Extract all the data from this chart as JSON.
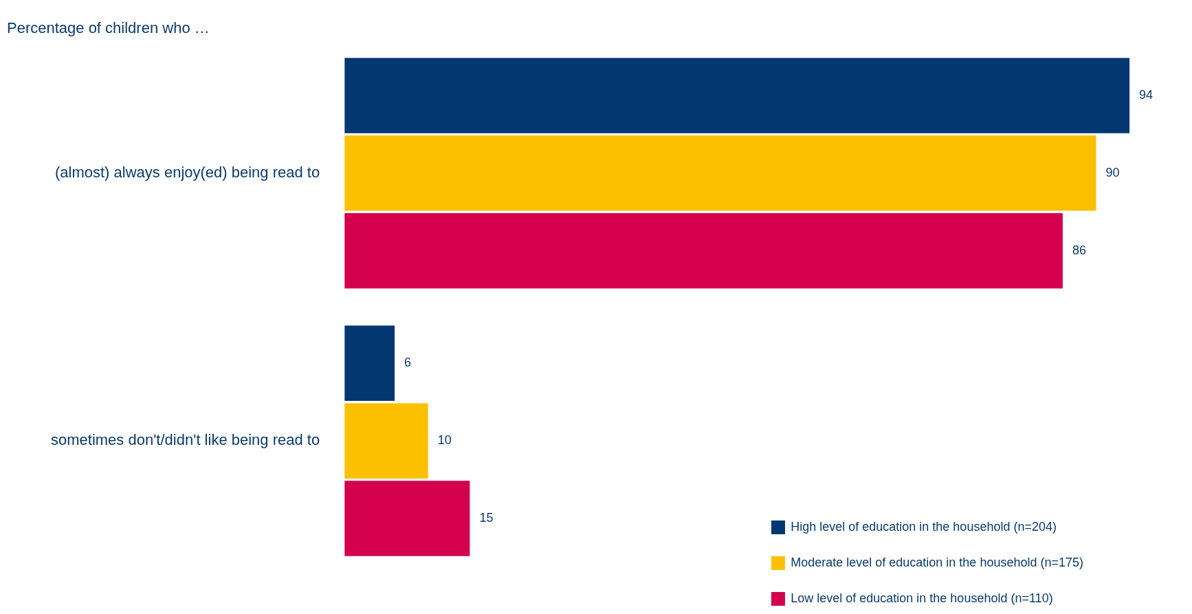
{
  "chart_data": {
    "type": "bar",
    "orientation": "horizontal",
    "title": "Percentage of children who …",
    "categories": [
      "(almost) always enjoy(ed) being read to",
      "sometimes don't/didn't like being read to"
    ],
    "series": [
      {
        "name": "High level of education in the household (n=204)",
        "color": "#033772",
        "values": [
          94,
          6
        ]
      },
      {
        "name": "Moderate level of education in the household (n=175)",
        "color": "#fdc000",
        "values": [
          90,
          10
        ]
      },
      {
        "name": "Low level of education in the household (n=110)",
        "color": "#d5004d",
        "values": [
          86,
          15
        ]
      }
    ],
    "tick_labels": "y",
    "data_labels": true,
    "legend": "bottom right",
    "grid": false
  }
}
